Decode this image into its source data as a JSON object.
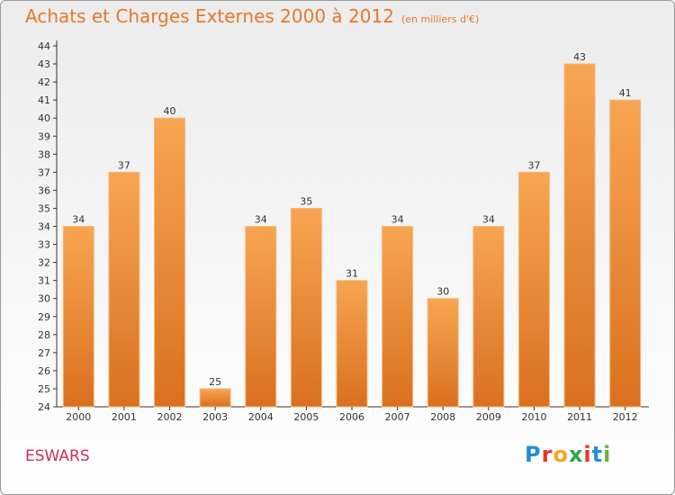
{
  "chart_data": {
    "type": "bar",
    "title": "Achats et Charges Externes 2000 à 2012",
    "unit": "(en milliers d'€)",
    "categories": [
      "2000",
      "2001",
      "2002",
      "2003",
      "2004",
      "2005",
      "2006",
      "2007",
      "2008",
      "2009",
      "2010",
      "2011",
      "2012"
    ],
    "values": [
      34,
      37,
      40,
      25,
      34,
      35,
      31,
      34,
      30,
      34,
      37,
      43,
      41
    ],
    "ylim": [
      24,
      44
    ],
    "yticks": [
      24,
      25,
      26,
      27,
      28,
      29,
      30,
      31,
      32,
      33,
      34,
      35,
      36,
      37,
      38,
      39,
      40,
      41,
      42,
      43,
      44
    ],
    "xlabel": "",
    "ylabel": "",
    "grid": false
  },
  "commune": "ESWARS",
  "logo": {
    "text": "Proxiti",
    "letters": [
      "P",
      "r",
      "o",
      "x",
      "i",
      "t",
      "i"
    ],
    "colors": [
      "#1e90d8",
      "#e9352a",
      "#f6a623",
      "#2aa84a",
      "#e9352a",
      "#1e90d8",
      "#6bb13a"
    ]
  },
  "colors": {
    "title": "#e8772b",
    "commune": "#d22b5a",
    "bar_light": "#f7a552",
    "bar_dark": "#d9701f"
  }
}
